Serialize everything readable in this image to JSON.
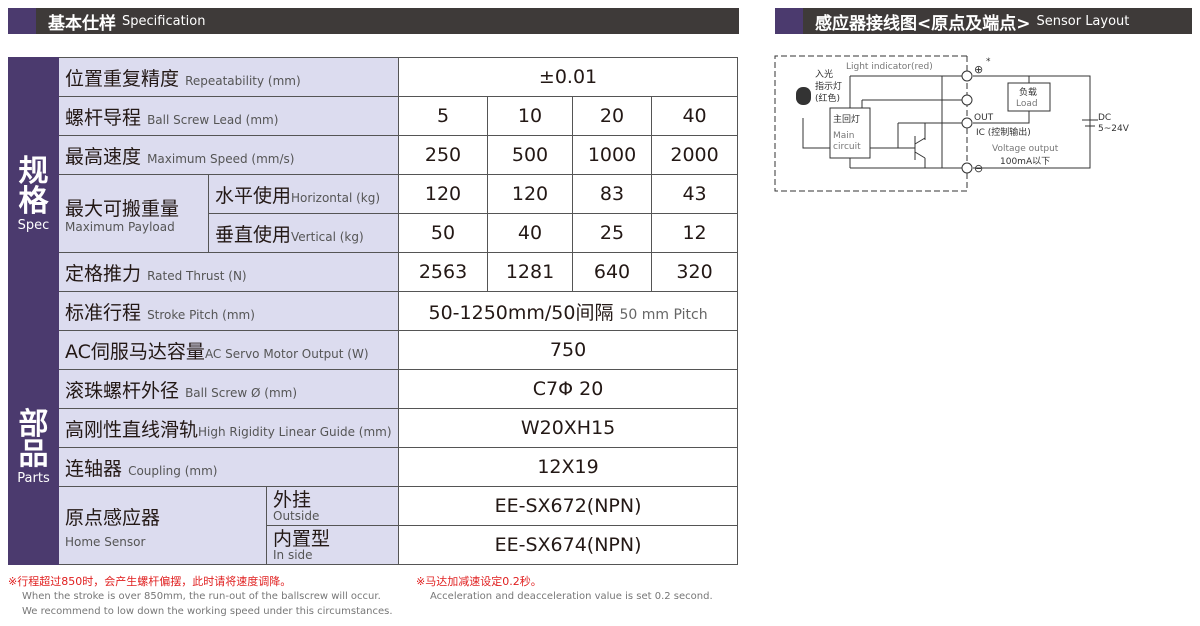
{
  "spec_header": {
    "zh": "基本仕样",
    "en": "Specification"
  },
  "sensor_header": {
    "zh": "感应器接线图<原点及端点>",
    "en": "Sensor Layout"
  },
  "groups": {
    "spec": {
      "zh": "规格",
      "en": "Spec"
    },
    "parts": {
      "zh": "部品",
      "en": "Parts"
    }
  },
  "rows": {
    "repeat": {
      "zh": "位置重复精度",
      "en": "Repeatability (mm)",
      "value": "±0.01"
    },
    "lead": {
      "zh": "螺杆导程",
      "en": "Ball Screw Lead (mm)",
      "values": [
        "5",
        "10",
        "20",
        "40"
      ]
    },
    "speed": {
      "zh": "最高速度",
      "en": "Maximum Speed (mm/s)",
      "values": [
        "250",
        "500",
        "1000",
        "2000"
      ]
    },
    "payload": {
      "zh": "最大可搬重量",
      "en": "Maximum Payload",
      "horizontal": {
        "zh": "水平使用",
        "en": "Horizontal (kg)",
        "values": [
          "120",
          "120",
          "83",
          "43"
        ]
      },
      "vertical": {
        "zh": "垂直使用",
        "en": "Vertical (kg)",
        "values": [
          "50",
          "40",
          "25",
          "12"
        ]
      }
    },
    "thrust": {
      "zh": "定格推力",
      "en": "Rated Thrust (N)",
      "values": [
        "2563",
        "1281",
        "640",
        "320"
      ]
    },
    "stroke": {
      "zh": "标准行程",
      "en": "Stroke Pitch (mm)",
      "value": "50-1250mm/50间隔",
      "value_en": "50 mm Pitch"
    },
    "motor": {
      "zh": "AC伺服马达容量",
      "en": "AC Servo Motor Output (W)",
      "value": "750"
    },
    "screw": {
      "zh": "滚珠螺杆外径",
      "en": "Ball Screw Ø (mm)",
      "value": "C7Φ 20"
    },
    "guide": {
      "zh": "高刚性直线滑轨",
      "en": "High Rigidity Linear Guide (mm)",
      "value": "W20XH15"
    },
    "coupling": {
      "zh": "连轴器",
      "en": "Coupling (mm)",
      "value": "12X19"
    },
    "home": {
      "zh": "原点感应器",
      "en": "Home Sensor",
      "outside": {
        "zh": "外挂",
        "en": "Outside",
        "value": "EE-SX672(NPN)"
      },
      "inside": {
        "zh": "内置型",
        "en": "In side",
        "value": "EE-SX674(NPN)"
      }
    }
  },
  "notes": {
    "n1": "※行程超过850时，会产生螺杆偏摆，此时请将速度调降。",
    "n1_en1": "When the stroke is over 850mm, the run-out of the ballscrew will occur.",
    "n1_en2": "We recommend to low down the working speed under this circumstances.",
    "n2": "※马达加减速设定0.2秒。",
    "n2_en": "Acceleration and deacceleration value is set 0.2 second."
  },
  "diagram": {
    "light_en": "Light indicator(red)",
    "light_zh1": "入光",
    "light_zh2": "指示灯",
    "light_zh3": "(红色)",
    "main_zh": "主回灯",
    "main_en1": "Main",
    "main_en2": "circuit",
    "load_zh": "负载",
    "load_en": "Load",
    "plus": "⊕",
    "star": "*",
    "minus": "⊖",
    "out": "OUT",
    "ic": "IC (控制输出)",
    "vout": "Voltage output",
    "current": "100mA以下",
    "dc": "DC",
    "volt": "5~24V"
  },
  "colors": {
    "purple": "#4b3a6e",
    "header": "#3e3a39",
    "label_bg": "#dcdcef",
    "note_red": "#e02020"
  }
}
